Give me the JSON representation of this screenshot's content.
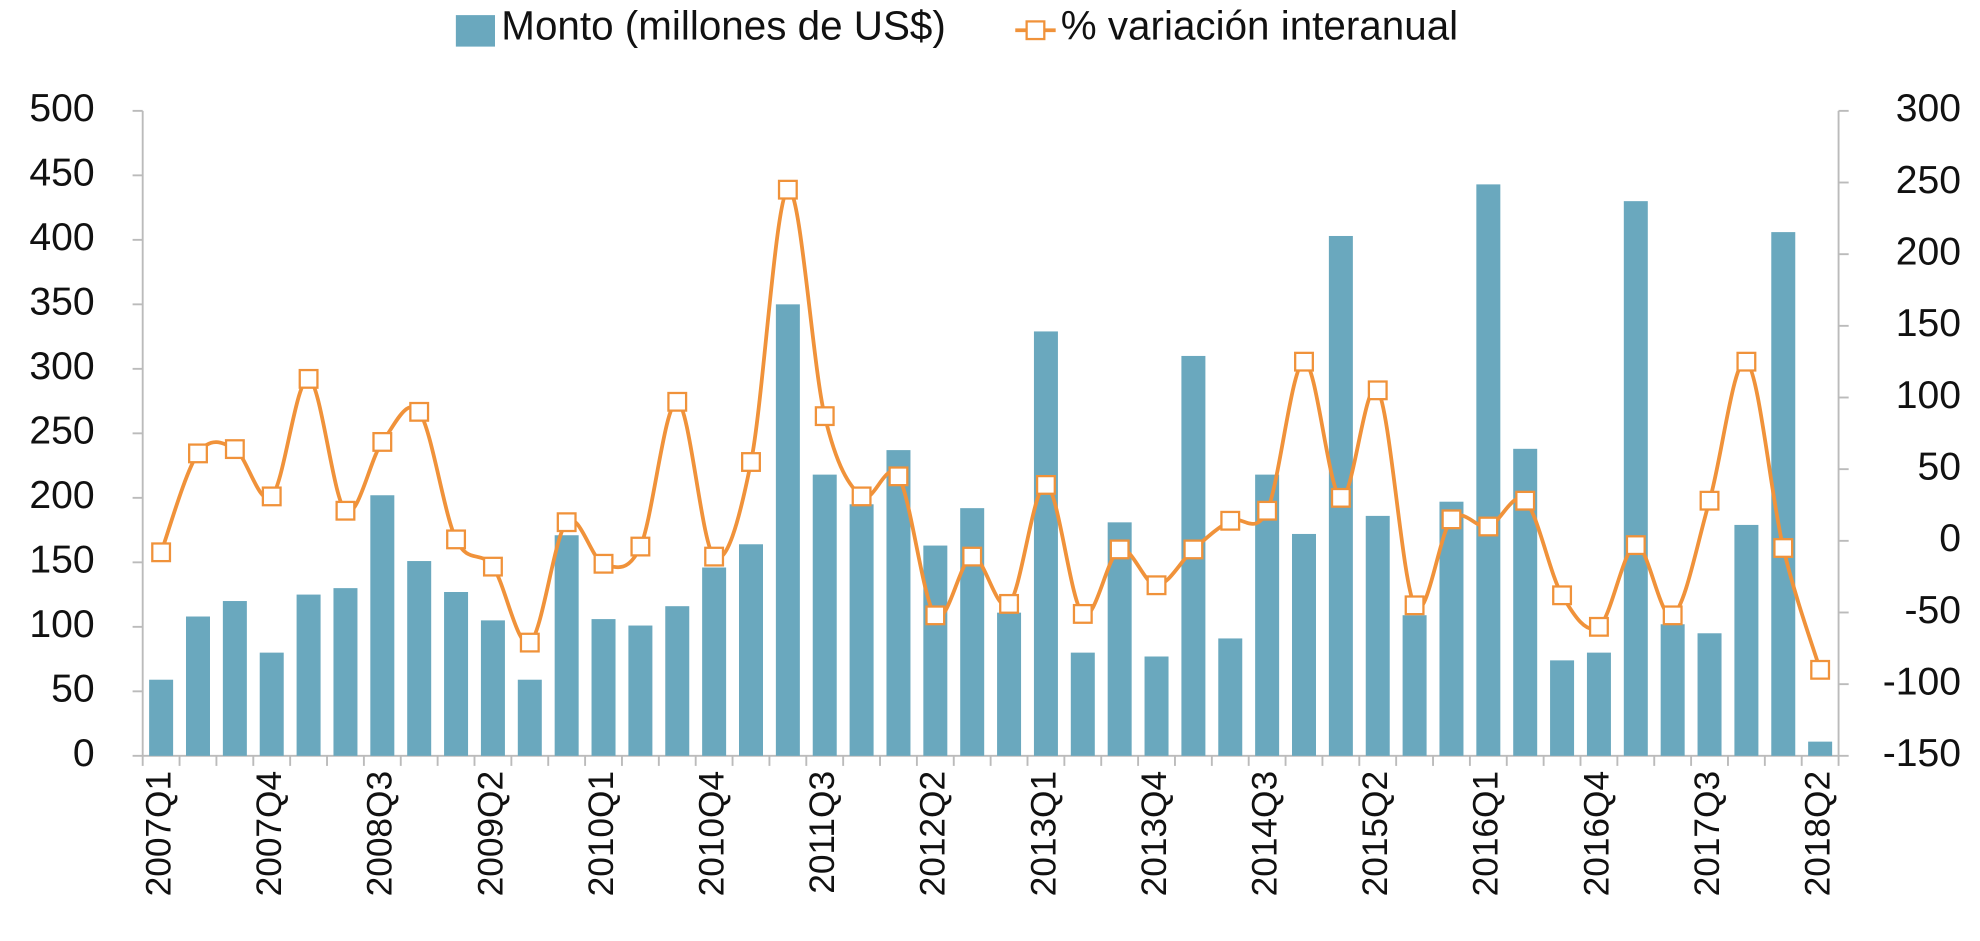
{
  "chart_data": {
    "type": "bar",
    "categories": [
      "2007Q1",
      null,
      null,
      "2007Q4",
      null,
      null,
      "2008Q3",
      null,
      null,
      "2009Q2",
      null,
      null,
      "2010Q1",
      null,
      null,
      "2010Q4",
      null,
      null,
      "2011Q3",
      null,
      null,
      "2012Q2",
      null,
      null,
      "2013Q1",
      null,
      null,
      "2013Q4",
      null,
      null,
      "2014Q3",
      null,
      null,
      "2015Q2",
      null,
      null,
      "2016Q1",
      null,
      null,
      "2016Q4",
      null,
      null,
      "2017Q3",
      null,
      null,
      "2018Q2"
    ],
    "series": [
      {
        "name": "Monto (millones de US$)",
        "type": "bar",
        "color": "#6aa8be",
        "values": [
          59,
          108,
          120,
          80,
          125,
          130,
          202,
          151,
          127,
          105,
          59,
          171,
          106,
          101,
          116,
          146,
          164,
          350,
          218,
          195,
          237,
          163,
          192,
          111,
          329,
          80,
          181,
          77,
          310,
          91,
          218,
          172,
          403,
          186,
          109,
          197,
          443,
          238,
          74,
          80,
          430,
          102,
          95,
          179,
          406,
          11
        ]
      },
      {
        "name": "% variación interanual",
        "type": "line",
        "axis": "y2",
        "color": "#f0923a",
        "values": [
          -8,
          61,
          64,
          31,
          113,
          21,
          69,
          90,
          1,
          -18,
          -71,
          13,
          -16,
          -4,
          97,
          -11,
          55,
          245,
          87,
          31,
          45,
          -52,
          -11,
          -44,
          39,
          -51,
          -6,
          -31,
          -6,
          14,
          21,
          125,
          30,
          105,
          -45,
          15,
          10,
          28,
          -38,
          -60,
          -3,
          -52,
          28,
          125,
          -5,
          -90
        ]
      }
    ],
    "ylim": [
      0,
      500
    ],
    "yticks": [
      0,
      50,
      100,
      150,
      200,
      250,
      300,
      350,
      400,
      450,
      500
    ],
    "y2lim": [
      -150,
      300
    ],
    "y2ticks": [
      -150,
      -100,
      -50,
      0,
      50,
      100,
      150,
      200,
      250,
      300
    ],
    "grid": false,
    "legend": "top"
  }
}
